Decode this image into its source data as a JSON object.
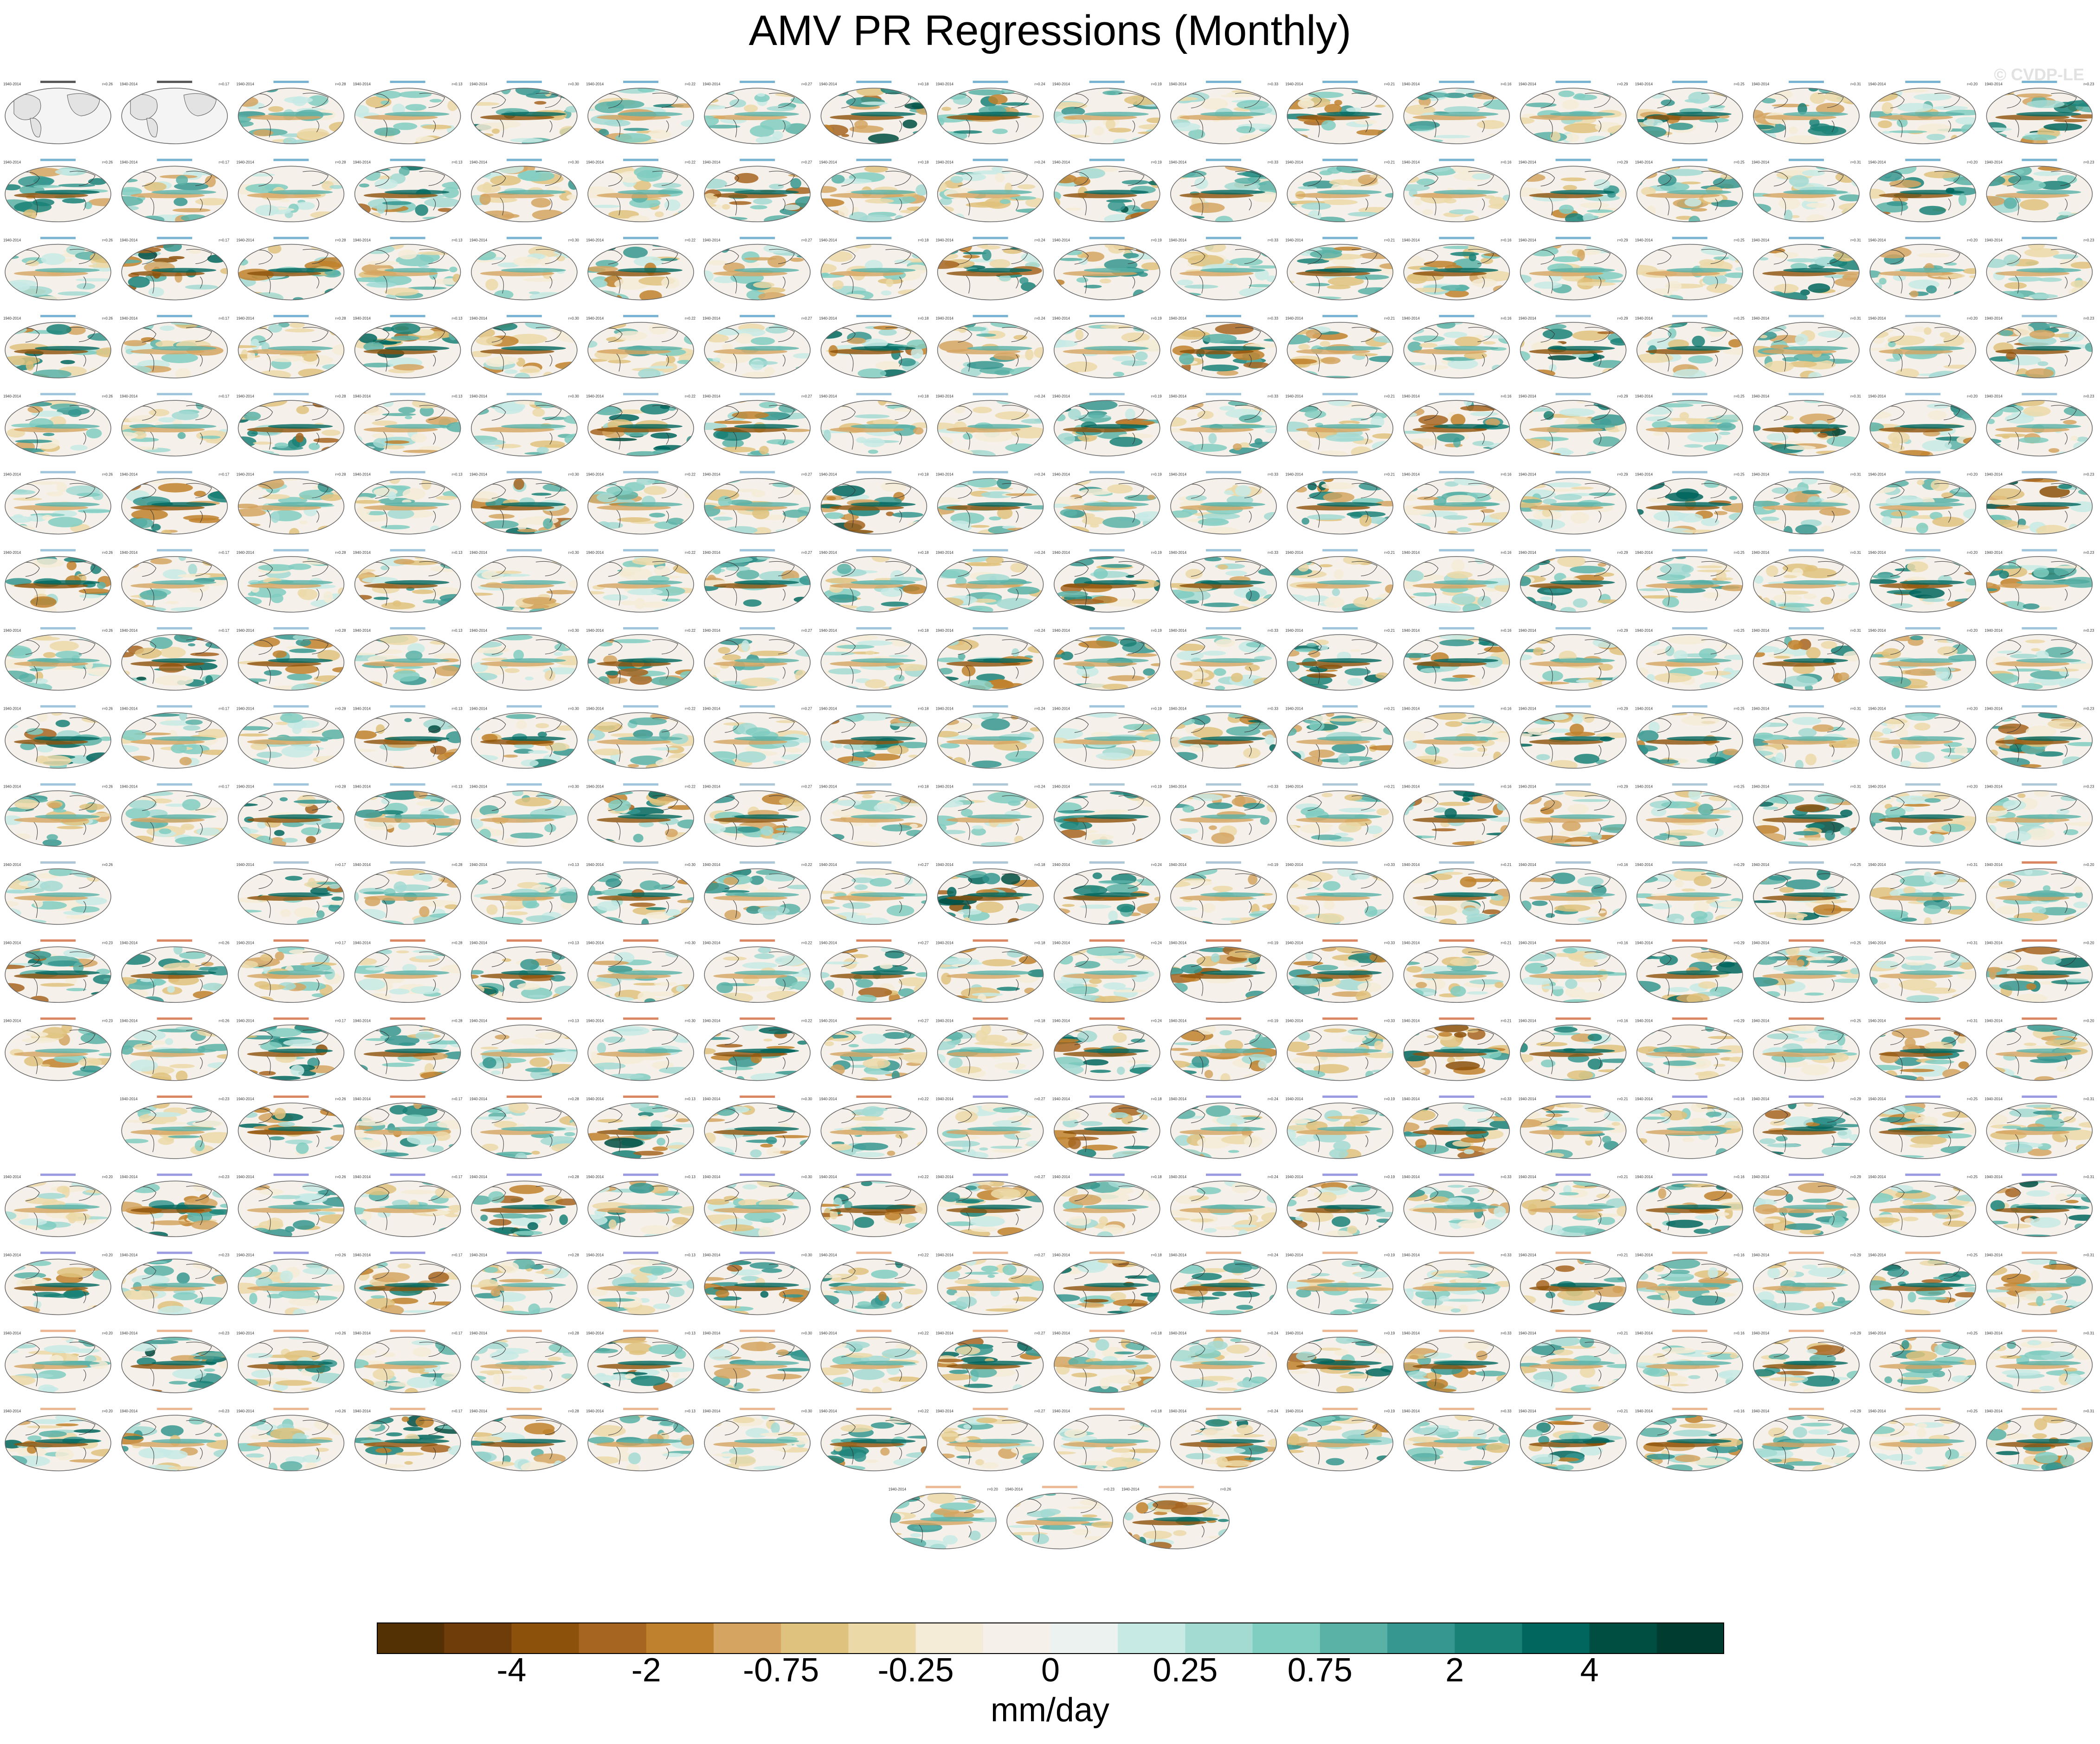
{
  "title": "AMV PR Regressions (Monthly)",
  "watermark": "© CVDP-LE",
  "colors": {
    "background": "#ffffff",
    "land": "#eeeeee",
    "coast": "#333333",
    "obs_title": "#222222",
    "group_titles": [
      "#4c9ac4",
      "#7fb2d0",
      "#92b4c9",
      "#cf5d2f",
      "#7a7ad8",
      "#e6a070"
    ],
    "scale": [
      "#543005",
      "#6e3d0a",
      "#8c510a",
      "#a66520",
      "#bf812d",
      "#d4a460",
      "#dfc27d",
      "#ecd9a8",
      "#f4ecd6",
      "#f5f1ea",
      "#ecf2f0",
      "#c7eae5",
      "#a3dbd3",
      "#80cdc1",
      "#5ab2a7",
      "#35978f",
      "#1a8177",
      "#01665e",
      "#004d42",
      "#003c30"
    ]
  },
  "panels": {
    "layout_note": "18 columns x 18 rows of global map panels plus 3 centered panels in final row",
    "rows": [
      {
        "row": 1,
        "count": 18,
        "group": 0,
        "style": "obs-first2"
      },
      {
        "row": 2,
        "count": 18,
        "group": 0
      },
      {
        "row": 3,
        "count": 18,
        "group": 0
      },
      {
        "row": 4,
        "count": 18,
        "group": 0,
        "switch_at": 13,
        "group2": 1
      },
      {
        "row": 5,
        "count": 18,
        "group": 1
      },
      {
        "row": 6,
        "count": 18,
        "group": 1
      },
      {
        "row": 7,
        "count": 18,
        "group": 1
      },
      {
        "row": 8,
        "count": 18,
        "group": 1
      },
      {
        "row": 9,
        "count": 18,
        "group": 1
      },
      {
        "row": 10,
        "count": 18,
        "group": 1,
        "switch_at": 6,
        "group2": 2
      },
      {
        "row": 11,
        "count": 17,
        "group": 2,
        "skip": [
          1
        ],
        "switch_at": 17,
        "group2": 3
      },
      {
        "row": 12,
        "count": 18,
        "group": 3
      },
      {
        "row": 13,
        "count": 18,
        "group": 3
      },
      {
        "row": 14,
        "count": 17,
        "group": 3,
        "skip": [
          0
        ],
        "switch_at": 8,
        "group2": 4
      },
      {
        "row": 15,
        "count": 18,
        "group": 4
      },
      {
        "row": 16,
        "count": 18,
        "group": 4,
        "switch_at": 7,
        "group2": 5
      },
      {
        "row": 17,
        "count": 18,
        "group": 5
      },
      {
        "row": 18,
        "count": 18,
        "group": 5
      },
      {
        "row": 19,
        "count": 3,
        "group": 5,
        "centered": true
      }
    ],
    "obs_labels": [
      "GPCC",
      "GPCC_1"
    ],
    "corner_left": "1940-2014",
    "corner_right_values": [
      "r=0.26",
      "r=0.17",
      "r=0.28",
      "r=0.13",
      "r=0.30",
      "r=0.22",
      "r=0.27",
      "r=0.18",
      "r=0.24",
      "r=0.19",
      "r=0.33",
      "r=0.21",
      "r=0.16",
      "r=0.29",
      "r=0.25",
      "r=0.31",
      "r=0.20",
      "r=0.23"
    ]
  },
  "chart_data": {
    "type": "heatmap",
    "title": "AMV PR Regressions (Monthly)",
    "colorbar": {
      "units": "mm/day",
      "tick_labels": [
        "-4",
        "-2",
        "-0.75",
        "-0.25",
        "0",
        "0.25",
        "0.75",
        "2",
        "4"
      ],
      "n_colors": 20,
      "orientation": "horizontal"
    }
  }
}
